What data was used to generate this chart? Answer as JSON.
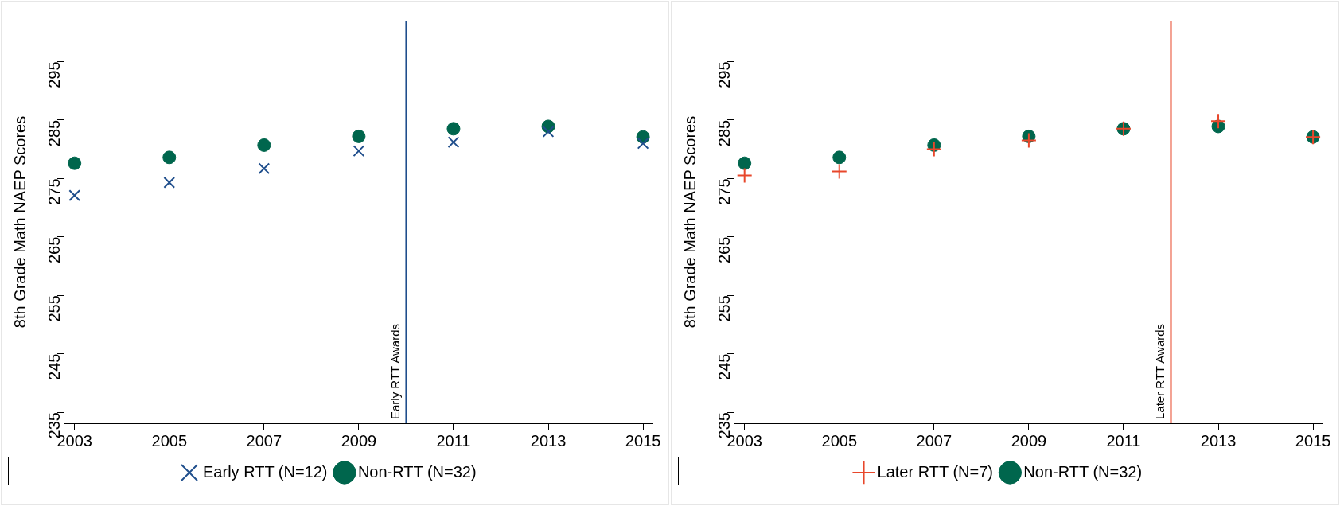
{
  "chart_data": [
    {
      "type": "scatter",
      "ylabel": "8th Grade Math NAEP Scores",
      "x": [
        2003,
        2005,
        2007,
        2009,
        2011,
        2013,
        2015
      ],
      "xlim": [
        2002.77,
        2015.2
      ],
      "xticks": [
        2003,
        2005,
        2007,
        2009,
        2011,
        2013,
        2015
      ],
      "ylim": [
        233.1,
        302
      ],
      "yticks": [
        235,
        245,
        255,
        265,
        275,
        285,
        295
      ],
      "grid": false,
      "legend": "bottom",
      "series": [
        {
          "name": "Early RTT (N=12)",
          "color": "#1f4e8c",
          "marker": "x",
          "values": [
            272.1,
            274.3,
            276.7,
            279.7,
            281.2,
            283.0,
            281.0
          ]
        },
        {
          "name": "Non-RTT (N=32)",
          "color": "#00664d",
          "marker": "circle",
          "values": [
            277.6,
            278.6,
            280.7,
            282.2,
            283.5,
            283.9,
            282.1
          ]
        }
      ],
      "ref_lines": [
        {
          "axis": "x",
          "value": 2010,
          "label": "Early RTT Awards",
          "color": "#1f4e8c"
        }
      ]
    },
    {
      "type": "scatter",
      "ylabel": "8th Grade Math NAEP Scores",
      "x": [
        2003,
        2005,
        2007,
        2009,
        2011,
        2013,
        2015
      ],
      "xlim": [
        2002.77,
        2015.2
      ],
      "xticks": [
        2003,
        2005,
        2007,
        2009,
        2011,
        2013,
        2015
      ],
      "ylim": [
        233.1,
        302
      ],
      "yticks": [
        235,
        245,
        255,
        265,
        275,
        285,
        295
      ],
      "grid": false,
      "legend": "bottom",
      "series": [
        {
          "name": "Later RTT (N=7)",
          "color": "#e8472b",
          "marker": "cross",
          "values": [
            275.5,
            276.2,
            280.0,
            281.5,
            283.5,
            284.8,
            282.1
          ]
        },
        {
          "name": "Non-RTT (N=32)",
          "color": "#00664d",
          "marker": "circle",
          "values": [
            277.6,
            278.6,
            280.7,
            282.2,
            283.5,
            283.9,
            282.1
          ]
        }
      ],
      "ref_lines": [
        {
          "axis": "x",
          "value": 2012,
          "label": "Later RTT Awards",
          "color": "#e8472b"
        }
      ]
    }
  ]
}
